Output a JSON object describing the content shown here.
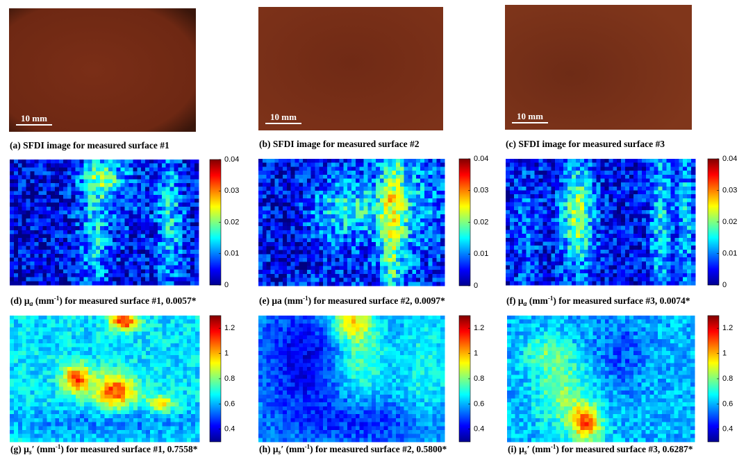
{
  "panels": [
    {
      "kind": "photo",
      "scale_bar": "10 mm",
      "caption": [
        {
          "text": "(a) SFDI image for measured surface #1"
        }
      ]
    },
    {
      "kind": "photo",
      "scale_bar": "10 mm",
      "caption": [
        {
          "text": "(b) SFDI image for measured surface #2"
        }
      ]
    },
    {
      "kind": "photo",
      "scale_bar": "10 mm",
      "caption": [
        {
          "text": "(c) SFDI image for measured surface #3"
        }
      ]
    },
    {
      "kind": "map",
      "caption": [
        {
          "text": "(d) μ"
        },
        {
          "text": "a",
          "script": "sub"
        },
        {
          "text": " (mm"
        },
        {
          "text": "-1",
          "script": "sup"
        },
        {
          "text": ") for measured surface #1, 0.0057*"
        }
      ],
      "colorbar": {
        "clim": [
          0,
          0.04
        ],
        "ticks": [
          0,
          0.01,
          0.02,
          0.03,
          0.04
        ]
      }
    },
    {
      "kind": "map",
      "caption": [
        {
          "text": "(e) μa (mm"
        },
        {
          "text": "-1",
          "script": "sup"
        },
        {
          "text": ") for measured surface #2, 0.0097*"
        }
      ],
      "colorbar": {
        "clim": [
          0,
          0.04
        ],
        "ticks": [
          0,
          0.01,
          0.02,
          0.03,
          0.04
        ]
      }
    },
    {
      "kind": "map",
      "caption": [
        {
          "text": "(f) μ"
        },
        {
          "text": "a",
          "script": "sub"
        },
        {
          "text": " (mm"
        },
        {
          "text": "-1",
          "script": "sup"
        },
        {
          "text": ") for measured surface #3, 0.0074*"
        }
      ],
      "colorbar": {
        "clim": [
          0,
          0.04
        ],
        "ticks": [
          0,
          0.01,
          0.02,
          0.03,
          0.04
        ]
      }
    },
    {
      "kind": "map",
      "caption": [
        {
          "text": "(g) μ"
        },
        {
          "text": "s",
          "script": "sub"
        },
        {
          "text": "′ (mm"
        },
        {
          "text": "-1",
          "script": "sup"
        },
        {
          "text": ") for measured surface #1, 0.7558*"
        }
      ],
      "colorbar": {
        "clim": [
          0.3,
          1.3
        ],
        "ticks": [
          0.4,
          0.6,
          0.8,
          1,
          1.2
        ]
      }
    },
    {
      "kind": "map",
      "caption": [
        {
          "text": "(h) μ"
        },
        {
          "text": "s",
          "script": "sub"
        },
        {
          "text": "′ (mm"
        },
        {
          "text": "-1",
          "script": "sup"
        },
        {
          "text": ") for measured surface #2, 0.5800*"
        }
      ],
      "colorbar": {
        "clim": [
          0.3,
          1.3
        ],
        "ticks": [
          0.4,
          0.6,
          0.8,
          1,
          1.2
        ]
      }
    },
    {
      "kind": "map",
      "caption": [
        {
          "text": "(i) μ"
        },
        {
          "text": "s",
          "script": "sub"
        },
        {
          "text": "′ (mm"
        },
        {
          "text": "-1",
          "script": "sup"
        },
        {
          "text": ") for measured surface #3, 0.6287*"
        }
      ],
      "colorbar": {
        "clim": [
          0.3,
          1.3
        ],
        "ticks": [
          0.4,
          0.6,
          0.8,
          1,
          1.2
        ]
      }
    }
  ]
}
